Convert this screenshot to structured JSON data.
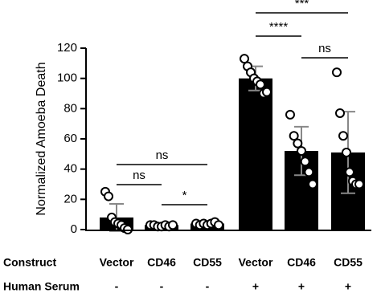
{
  "chart_data": {
    "type": "bar",
    "y_label": "Normalized Amoeba Death",
    "categories": [
      "Vector",
      "CD46",
      "CD55",
      "Vector",
      "CD46",
      "CD55"
    ],
    "row_labels": [
      "Construct",
      "Human Serum"
    ],
    "serum": [
      "-",
      "-",
      "-",
      "+",
      "+",
      "+"
    ],
    "values": [
      8,
      3,
      4,
      100,
      52,
      51
    ],
    "errors": [
      9,
      1,
      1,
      8,
      16,
      27
    ],
    "points": [
      [
        25,
        22,
        8,
        5,
        4,
        3,
        1,
        0
      ],
      [
        3,
        3,
        2,
        2,
        3,
        2,
        3
      ],
      [
        4,
        3,
        4,
        3,
        4,
        5,
        3
      ],
      [
        113,
        108,
        104,
        100,
        98,
        96,
        90,
        91
      ],
      [
        76,
        62,
        57,
        52,
        45,
        38,
        30
      ],
      [
        104,
        77,
        62,
        51,
        38,
        32,
        30,
        30
      ]
    ],
    "annotations": [
      "ns",
      "ns",
      "*",
      "***",
      "****",
      "ns"
    ],
    "color": "#000000",
    "error_color": "#888888",
    "point_color": "#ffffff",
    "ylim": [
      0,
      120
    ],
    "yticks": [
      0,
      20,
      40,
      60,
      80,
      100,
      120
    ]
  }
}
